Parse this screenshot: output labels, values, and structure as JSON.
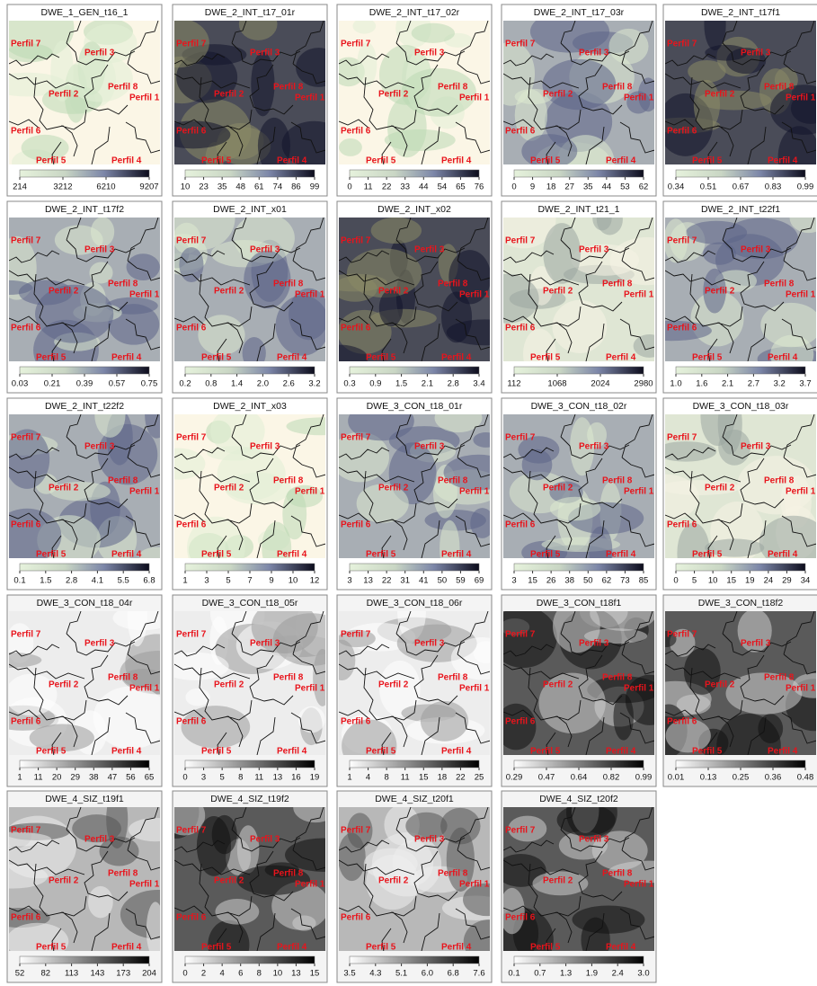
{
  "panels": [
    {
      "title": "DWE_1_GEN_t16_1",
      "scale": [
        "214",
        "3212",
        "6210",
        "9207"
      ]
    },
    {
      "title": "DWE_2_INT_t17_01r",
      "scale": [
        "10",
        "23",
        "35",
        "48",
        "61",
        "74",
        "86",
        "99"
      ]
    },
    {
      "title": "DWE_2_INT_t17_02r",
      "scale": [
        "0",
        "11",
        "22",
        "33",
        "44",
        "54",
        "65",
        "76"
      ]
    },
    {
      "title": "DWE_2_INT_t17_03r",
      "scale": [
        "0",
        "9",
        "18",
        "27",
        "35",
        "44",
        "53",
        "62"
      ]
    },
    {
      "title": "DWE_2_INT_t17f1",
      "scale": [
        "0.34",
        "0.51",
        "0.67",
        "0.83",
        "0.99"
      ]
    },
    {
      "title": "DWE_2_INT_t17f2",
      "scale": [
        "0.03",
        "0.21",
        "0.39",
        "0.57",
        "0.75"
      ]
    },
    {
      "title": "DWE_2_INT_x01",
      "scale": [
        "0.2",
        "0.8",
        "1.4",
        "2.0",
        "2.6",
        "3.2"
      ]
    },
    {
      "title": "DWE_2_INT_x02",
      "scale": [
        "0.3",
        "0.9",
        "1.5",
        "2.1",
        "2.8",
        "3.4"
      ]
    },
    {
      "title": "DWE_2_INT_t21_1",
      "scale": [
        "112",
        "1068",
        "2024",
        "2980"
      ]
    },
    {
      "title": "DWE_2_INT_t22f1",
      "scale": [
        "1.0",
        "1.6",
        "2.1",
        "2.7",
        "3.2",
        "3.7"
      ]
    },
    {
      "title": "DWE_2_INT_t22f2",
      "scale": [
        "0.1",
        "1.5",
        "2.8",
        "4.1",
        "5.5",
        "6.8"
      ]
    },
    {
      "title": "DWE_2_INT_x03",
      "scale": [
        "1",
        "3",
        "5",
        "7",
        "9",
        "10",
        "12"
      ]
    },
    {
      "title": "DWE_3_CON_t18_01r",
      "scale": [
        "3",
        "13",
        "22",
        "31",
        "41",
        "50",
        "59",
        "69"
      ]
    },
    {
      "title": "DWE_3_CON_t18_02r",
      "scale": [
        "3",
        "15",
        "26",
        "38",
        "50",
        "62",
        "73",
        "85"
      ]
    },
    {
      "title": "DWE_3_CON_t18_03r",
      "scale": [
        "0",
        "5",
        "10",
        "15",
        "19",
        "24",
        "29",
        "34"
      ]
    },
    {
      "title": "DWE_3_CON_t18_04r",
      "scale": [
        "1",
        "11",
        "20",
        "29",
        "38",
        "47",
        "56",
        "65"
      ]
    },
    {
      "title": "DWE_3_CON_t18_05r",
      "scale": [
        "0",
        "3",
        "5",
        "8",
        "11",
        "13",
        "16",
        "19"
      ]
    },
    {
      "title": "DWE_3_CON_t18_06r",
      "scale": [
        "1",
        "4",
        "8",
        "11",
        "15",
        "18",
        "22",
        "25"
      ]
    },
    {
      "title": "DWE_3_CON_t18f1",
      "scale": [
        "0.29",
        "0.47",
        "0.64",
        "0.82",
        "0.99"
      ]
    },
    {
      "title": "DWE_3_CON_t18f2",
      "scale": [
        "0.01",
        "0.13",
        "0.25",
        "0.36",
        "0.48"
      ]
    },
    {
      "title": "DWE_4_SIZ_t19f1",
      "scale": [
        "52",
        "82",
        "113",
        "143",
        "173",
        "204"
      ]
    },
    {
      "title": "DWE_4_SIZ_t19f2",
      "scale": [
        "0",
        "2",
        "4",
        "6",
        "8",
        "10",
        "13",
        "15"
      ]
    },
    {
      "title": "DWE_4_SIZ_t20f1",
      "scale": [
        "3.5",
        "4.3",
        "5.1",
        "6.0",
        "6.8",
        "7.6"
      ]
    },
    {
      "title": "DWE_4_SIZ_t20f2",
      "scale": [
        "0.1",
        "0.7",
        "1.3",
        "1.9",
        "2.4",
        "3.0"
      ]
    }
  ],
  "labels": [
    "Perfil 7",
    "Perfil 3",
    "Perfil 8",
    "Perfil 2",
    "Perfil 1",
    "Perfil 6",
    "Perfil 5",
    "Perfil 4"
  ]
}
